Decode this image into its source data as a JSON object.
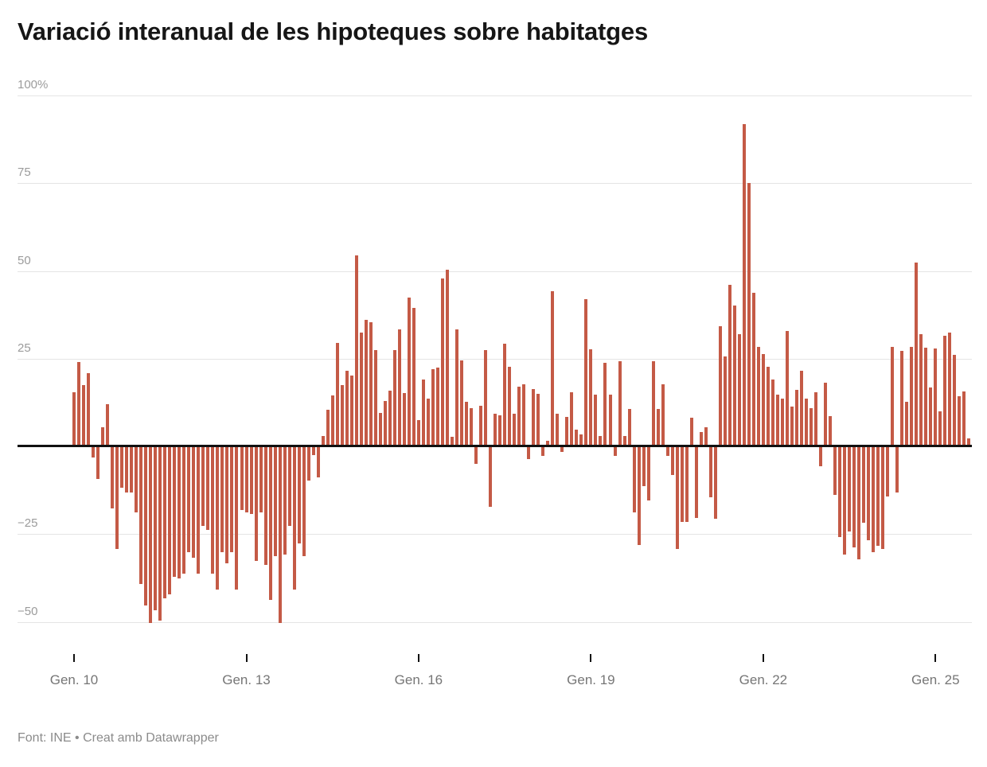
{
  "header": {
    "title": "Variació interanual de les hipoteques sobre habitatges"
  },
  "footer": {
    "source_line": "Font: INE • Creat amb Datawrapper"
  },
  "colors": {
    "bar": "#c45a46",
    "baseline": "#111111",
    "gridline": "#e4e4e4",
    "y_label": "#9b9b9b",
    "x_label": "#767676",
    "title": "#161616",
    "footer": "#8b8b8b",
    "background": "#ffffff"
  },
  "chart_data": {
    "type": "bar",
    "title": "Variació interanual de les hipoteques sobre habitatges",
    "unit": "%",
    "frequency": "monthly",
    "xlabel": "",
    "ylabel": "",
    "ylim": [
      -55,
      102
    ],
    "baseline": 0,
    "grid": "on",
    "legend_position": "none",
    "y_ticks": [
      {
        "value": 100,
        "label": "100%"
      },
      {
        "value": 75,
        "label": "75"
      },
      {
        "value": 50,
        "label": "50"
      },
      {
        "value": 25,
        "label": "25"
      },
      {
        "value": -25,
        "label": "−25"
      },
      {
        "value": -50,
        "label": "−50"
      }
    ],
    "x_ticks": [
      {
        "index": 0,
        "label": "Gen. 10"
      },
      {
        "index": 36,
        "label": "Gen. 13"
      },
      {
        "index": 72,
        "label": "Gen. 16"
      },
      {
        "index": 108,
        "label": "Gen. 19"
      },
      {
        "index": 144,
        "label": "Gen. 22"
      },
      {
        "index": 180,
        "label": "Gen. 25"
      }
    ],
    "series_name": "Variació interanual (%)",
    "x_start_label": "Gen. 10",
    "x_end_label": "Gen. 25",
    "values": [
      15,
      23.5,
      17,
      20.5,
      -3,
      -9,
      5,
      11.5,
      -17.5,
      -29,
      -11.5,
      -13,
      -13,
      -18.5,
      -39,
      -45,
      -50,
      -46.5,
      -49.5,
      -43,
      -42,
      -37,
      -37.5,
      -36,
      -30,
      -31.5,
      -36,
      -22.5,
      -23.5,
      -36,
      -40.5,
      -30,
      -33,
      -30,
      -40.5,
      -18,
      -18.5,
      -19,
      -32.5,
      -18.5,
      -33.5,
      -43.5,
      -31,
      -50,
      -30.5,
      -22.5,
      -40.5,
      -27.5,
      -31,
      -9.5,
      -2.2,
      -8.6,
      2.5,
      10,
      14,
      29,
      17,
      21,
      19.8,
      54,
      32,
      35.5,
      35,
      27,
      9,
      12.5,
      15.5,
      27,
      33,
      14.7,
      42,
      39,
      7,
      18.5,
      13.2,
      21.6,
      22,
      47.5,
      50,
      2.3,
      33,
      24,
      12.3,
      10.5,
      -4.7,
      11.1,
      27,
      -17,
      8.9,
      8.3,
      28.8,
      22.3,
      8.9,
      16.6,
      17.2,
      -3.4,
      15.9,
      14.5,
      -2.4,
      1.1,
      43.8,
      8.8,
      -1.4,
      8,
      15,
      4.4,
      2.9,
      41.4,
      27.3,
      14.2,
      2.6,
      23.3,
      14.2,
      -2.4,
      23.9,
      2.6,
      10.2,
      -18.5,
      -27.9,
      -11.1,
      -15.1,
      23.8,
      10.2,
      17.3,
      -2.5,
      -7.9,
      -29,
      -21.4,
      -21.4,
      7.7,
      -20.2,
      3.7,
      4.9,
      -14.3,
      -20.4,
      33.7,
      25.2,
      45.6,
      39.8,
      31.6,
      91.3,
      74.7,
      43.3,
      27.8,
      25.9,
      22.2,
      18.6,
      14.2,
      13.2,
      32.4,
      10.9,
      15.6,
      21,
      13.2,
      10.4,
      15,
      -5.5,
      17.6,
      8.2,
      -13.5,
      -25.5,
      -30.5,
      -24,
      -28.5,
      -32,
      -21.5,
      -26.5,
      -30,
      -28,
      -29,
      -14,
      28,
      -13,
      26.8,
      12.3,
      27.8,
      52,
      31.5,
      27.6,
      16.4,
      27.4,
      9.6,
      31,
      32,
      25.7,
      13.8,
      15.2,
      1.8
    ]
  }
}
